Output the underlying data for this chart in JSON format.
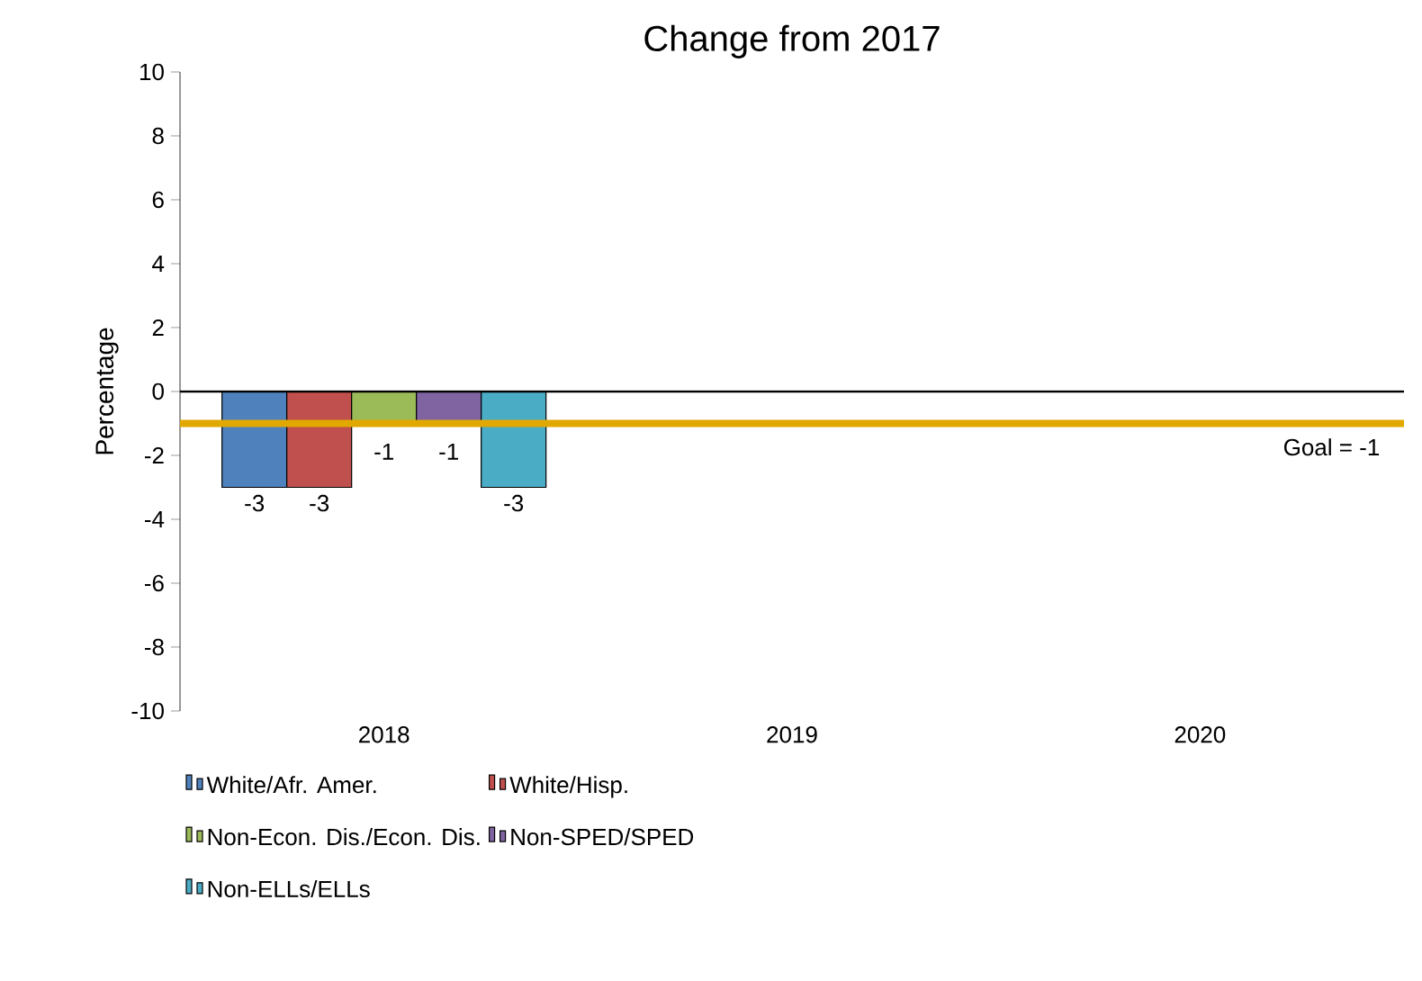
{
  "chart_data": {
    "type": "bar",
    "title": "Change from 2017",
    "ylabel": "Percentage",
    "categories": [
      "2018",
      "2019",
      "2020"
    ],
    "series": [
      {
        "name": "White/Afr. Amer.",
        "color": "#4f81bd",
        "values": [
          -3,
          null,
          null
        ]
      },
      {
        "name": "White/Hisp.",
        "color": "#c0504d",
        "values": [
          -3,
          null,
          null
        ]
      },
      {
        "name": "Non-Econ. Dis./Econ. Dis.",
        "color": "#9bbb59",
        "values": [
          -1,
          null,
          null
        ]
      },
      {
        "name": "Non-SPED/SPED",
        "color": "#8064a2",
        "values": [
          -1,
          null,
          null
        ]
      },
      {
        "name": "Non-ELLs/ELLs",
        "color": "#4bacc6",
        "values": [
          -3,
          null,
          null
        ]
      }
    ],
    "ylim": [
      -10,
      10
    ],
    "yticks": [
      -10,
      -8,
      -6,
      -4,
      -2,
      0,
      2,
      4,
      6,
      8,
      10
    ],
    "ref_lines": [
      {
        "axis": "y",
        "value": -1,
        "label": "Goal = -1",
        "color": "#e0a800"
      }
    ],
    "data_labels": true,
    "legend": "bottom"
  }
}
